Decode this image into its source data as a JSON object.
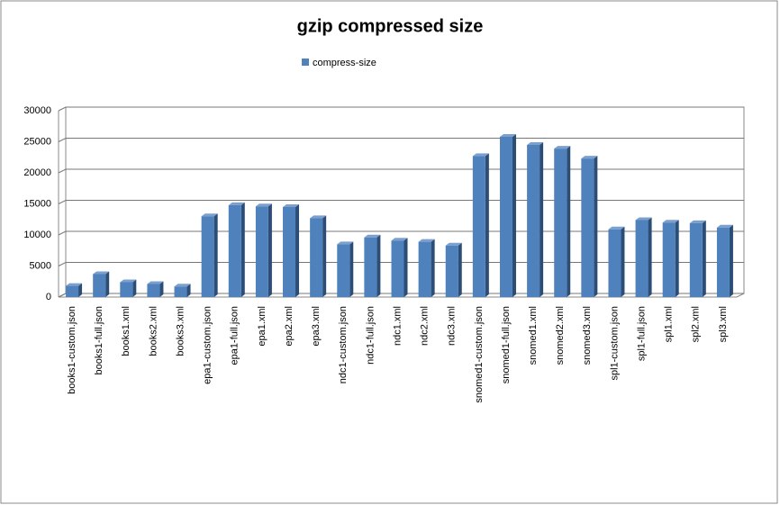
{
  "chart_data": {
    "type": "bar",
    "title": "gzip compressed size",
    "categories": [
      "books1-custom.json",
      "books1-full.json",
      "books1.xml",
      "books2.xml",
      "books3.xml",
      "epa1-custom.json",
      "epa1-full.json",
      "epa1.xml",
      "epa2.xml",
      "epa3.xml",
      "ndc1-custom.json",
      "ndc1-full.json",
      "ndc1.xml",
      "ndc2.xml",
      "ndc3.xml",
      "snomed1-custom.json",
      "snomed1-full.json",
      "snomed1.xml",
      "snomed2.xml",
      "snomed3.xml",
      "spl1-custom.json",
      "spl1-full.json",
      "spl1.xml",
      "spl2.xml",
      "spl3.xml"
    ],
    "series": [
      {
        "name": "compress-size",
        "color": "#4f81bd",
        "values": [
          1800,
          3700,
          2400,
          2100,
          1700,
          13000,
          14800,
          14600,
          14500,
          12700,
          8500,
          9600,
          9100,
          8900,
          8300,
          22700,
          25800,
          24500,
          23900,
          22300,
          10900,
          12400,
          12000,
          11900,
          11200
        ]
      }
    ],
    "ylim": [
      0,
      30000
    ],
    "yticks": [
      0,
      5000,
      10000,
      15000,
      20000,
      25000,
      30000
    ],
    "grid": true,
    "legend": "top"
  }
}
